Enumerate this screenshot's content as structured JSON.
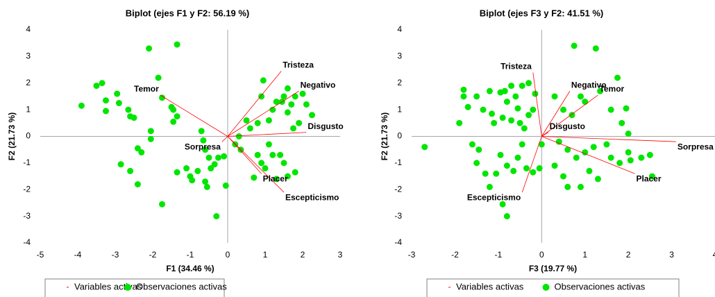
{
  "chart_data": [
    {
      "type": "scatter",
      "title": "Biplot (ejes F1 y F2: 56.19 %)",
      "x_label": "F1 (34.46 %)",
      "y_label": "F2 (21.73 %)",
      "xlim": [
        -5,
        3
      ],
      "ylim": [
        -4,
        4
      ],
      "xticks": [
        -5,
        -4,
        -3,
        -2,
        -1,
        0,
        1,
        2,
        3
      ],
      "yticks": [
        -4,
        -3,
        -2,
        -1,
        0,
        1,
        2,
        3,
        4
      ],
      "series": [
        {
          "name": "Variables activas",
          "color": "#ff0000",
          "labels": [
            "Tristeza",
            "Negativo",
            "Disgusto",
            "Escepticismo",
            "Placer",
            "Sorpresa",
            "Temor"
          ],
          "x": [
            1.43,
            1.9,
            2.1,
            1.5,
            0.9,
            -0.15,
            -1.8
          ],
          "values": [
            2.45,
            1.7,
            0.15,
            -2.1,
            -1.4,
            -0.2,
            1.55
          ]
        },
        {
          "name": "Observaciones activas",
          "color": "#00e600",
          "x": [
            -3.9,
            -3.5,
            -3.35,
            -3.25,
            -3.25,
            -2.95,
            -2.9,
            -2.65,
            -2.6,
            -2.5,
            -2.1,
            -2.05,
            -2.05,
            -1.85,
            -1.75,
            -1.5,
            -1.45,
            -1.45,
            -1.35,
            -1.35,
            -2.4,
            -2.3,
            -2.85,
            -2.6,
            -2.4,
            -1.75,
            -1.35,
            -1.1,
            -1.0,
            -0.95,
            -0.8,
            -0.6,
            -0.55,
            -0.6,
            -0.5,
            -0.45,
            -0.35,
            -0.25,
            -0.1,
            -0.05,
            -0.3,
            -0.7,
            -0.65,
            0.2,
            0.35,
            0.3,
            0.5,
            0.6,
            0.8,
            0.9,
            0.95,
            1.2,
            1.3,
            1.45,
            1.5,
            1.6,
            1.7,
            1.8,
            1.9,
            2.0,
            2.1,
            2.25,
            1.75,
            1.6,
            1.1,
            0.8,
            0.9,
            1.0,
            1.2,
            1.4,
            1.5,
            1.6,
            1.8,
            1.3,
            0.7,
            1.1
          ],
          "values": [
            1.15,
            1.9,
            2.0,
            1.35,
            0.95,
            1.6,
            1.25,
            1.0,
            0.75,
            0.7,
            3.3,
            0.2,
            -0.1,
            2.2,
            1.45,
            1.1,
            1.0,
            0.55,
            3.45,
            0.75,
            -0.45,
            -0.6,
            -1.05,
            -1.3,
            -1.8,
            -2.55,
            -1.35,
            -1.2,
            -1.5,
            -1.65,
            -1.3,
            -1.7,
            -1.9,
            -0.5,
            -0.8,
            -1.2,
            -1.05,
            -0.8,
            -0.75,
            -1.85,
            -3.0,
            0.2,
            -0.15,
            -0.3,
            -0.5,
            0.0,
            0.6,
            0.3,
            0.5,
            1.5,
            2.1,
            1.0,
            1.3,
            1.3,
            1.5,
            1.8,
            1.2,
            1.5,
            0.5,
            1.6,
            1.2,
            0.8,
            0.3,
            0.9,
            0.6,
            -0.7,
            -1.0,
            -1.2,
            -0.7,
            -0.7,
            -1.0,
            -1.5,
            -1.35,
            -1.6,
            -1.55,
            -0.3
          ]
        }
      ]
    },
    {
      "type": "scatter",
      "title": "Biplot (ejes F3 y F2: 41.51 %)",
      "x_label": "F3 (19.77 %)",
      "y_label": "F2 (21.73 %)",
      "xlim": [
        -3,
        4
      ],
      "ylim": [
        -4,
        4
      ],
      "xticks": [
        -3,
        -2,
        -1,
        0,
        1,
        2,
        3,
        4
      ],
      "yticks": [
        -4,
        -3,
        -2,
        -1,
        0,
        1,
        2,
        3,
        4
      ],
      "series": [
        {
          "name": "Variables activas",
          "color": "#ff0000",
          "labels": [
            "Tristeza",
            "Negativo",
            "Temor",
            "Disgusto",
            "Sorpresa",
            "Placer",
            "Escepticismo"
          ],
          "x": [
            -0.2,
            0.65,
            1.3,
            0.15,
            3.1,
            2.15,
            -0.45
          ],
          "values": [
            2.4,
            1.7,
            1.55,
            0.15,
            -0.2,
            -1.4,
            -2.1
          ]
        },
        {
          "name": "Observaciones activas",
          "color": "#00e600",
          "x": [
            -2.7,
            -1.8,
            -1.8,
            -1.7,
            -1.5,
            -1.35,
            -1.2,
            -1.15,
            -1.1,
            -0.95,
            -0.85,
            -0.7,
            -0.6,
            -0.55,
            -0.45,
            -0.3,
            -0.2,
            -0.15,
            -0.8,
            -0.9,
            -0.7,
            -0.5,
            -0.4,
            -0.3,
            -1.6,
            -1.45,
            -1.5,
            -1.3,
            -1.2,
            -1.05,
            -0.95,
            -0.9,
            -0.8,
            -0.8,
            -0.65,
            -0.55,
            -0.45,
            -0.35,
            -0.2,
            -0.05,
            0.3,
            0.5,
            0.7,
            0.75,
            0.9,
            1.0,
            1.25,
            1.35,
            1.6,
            1.75,
            1.95,
            1.85,
            2.0,
            0.4,
            0.6,
            0.8,
            1.0,
            1.2,
            1.5,
            1.6,
            1.8,
            2.0,
            2.3,
            2.5,
            2.55,
            0.3,
            0.5,
            0.6,
            0.9,
            1.1,
            1.3,
            2.05,
            -1.9,
            0.0
          ],
          "values": [
            -0.4,
            1.75,
            1.5,
            1.1,
            1.5,
            1.0,
            1.7,
            0.85,
            0.5,
            1.65,
            1.7,
            1.9,
            1.5,
            1.05,
            1.9,
            2.0,
            1.0,
            1.6,
            1.3,
            0.7,
            0.6,
            0.5,
            0.3,
            0.8,
            -0.3,
            -0.5,
            -1.0,
            -1.4,
            -1.9,
            -1.4,
            -0.7,
            -2.55,
            -1.1,
            -3.0,
            -1.3,
            -0.8,
            -0.3,
            -1.2,
            -1.35,
            -1.2,
            1.5,
            1.0,
            0.8,
            3.4,
            1.5,
            1.3,
            3.3,
            1.7,
            1.0,
            2.2,
            1.05,
            0.5,
            0.1,
            -0.2,
            -0.5,
            -0.8,
            -0.6,
            -0.4,
            -0.3,
            -0.8,
            -1.0,
            -0.6,
            -0.8,
            -0.7,
            -1.5,
            -1.1,
            -1.5,
            -1.9,
            -1.9,
            -1.3,
            -1.6,
            -0.9,
            0.5,
            -0.3
          ]
        }
      ]
    }
  ]
}
